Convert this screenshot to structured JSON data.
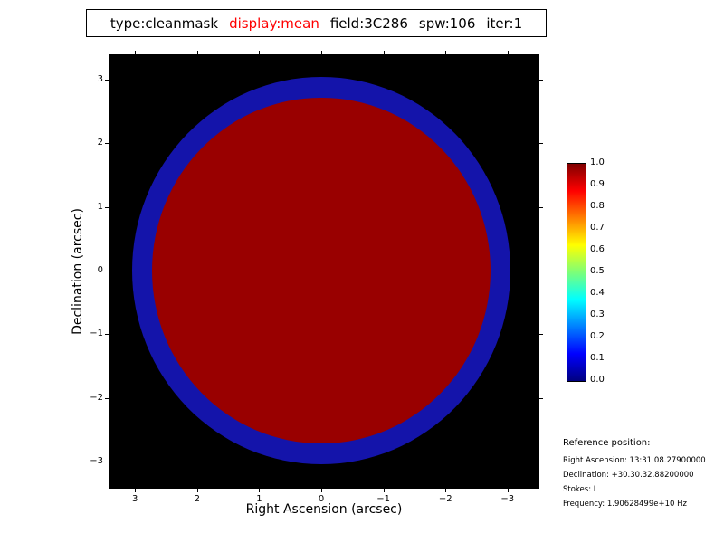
{
  "title": {
    "type": "type:cleanmask",
    "display": "display:mean",
    "field": "field:3C286",
    "spw": "spw:106",
    "iter": "iter:1"
  },
  "colors": {
    "title_display_highlight": "#ff0000",
    "plot_background": "#000000",
    "mask_core": "#990000",
    "mask_annulus": "#1414aa"
  },
  "chart_data": {
    "type": "heatmap",
    "title": "type:cleanmask display:mean field:3C286 spw:106 iter:1",
    "xlabel": "Right Ascension (arcsec)",
    "ylabel": "Declination (arcsec)",
    "xlim": [
      3.45,
      -3.45
    ],
    "ylim": [
      -3.45,
      3.45
    ],
    "x_tick_values": [
      3,
      2,
      1,
      0,
      -1,
      -2,
      -3
    ],
    "x_ticks": [
      "3",
      "2",
      "1",
      "0",
      "−1",
      "−2",
      "−3"
    ],
    "y_tick_values": [
      3,
      2,
      1,
      0,
      -1,
      -2,
      -3
    ],
    "y_ticks": [
      "3",
      "2",
      "1",
      "0",
      "−1",
      "−2",
      "−3"
    ],
    "regions": [
      {
        "name": "mask-annulus",
        "shape": "circle",
        "radius_arcsec": 3.05,
        "value": 0.1,
        "color": "#1414aa"
      },
      {
        "name": "mask-core",
        "shape": "circle",
        "radius_arcsec": 2.72,
        "value": 1.0,
        "color": "#990000"
      }
    ],
    "colorbar": {
      "colormap": "jet",
      "range": [
        0.0,
        1.0
      ],
      "ticks": [
        "1.0",
        "0.9",
        "0.8",
        "0.7",
        "0.6",
        "0.5",
        "0.4",
        "0.3",
        "0.2",
        "0.1",
        "0.0"
      ]
    }
  },
  "reference": {
    "heading": "Reference position:",
    "lines": [
      "Right Ascension: 13:31:08.27900000",
      "Declination: +30.30.32.88200000",
      "Stokes: I",
      "Frequency: 1.90628499e+10 Hz"
    ]
  }
}
